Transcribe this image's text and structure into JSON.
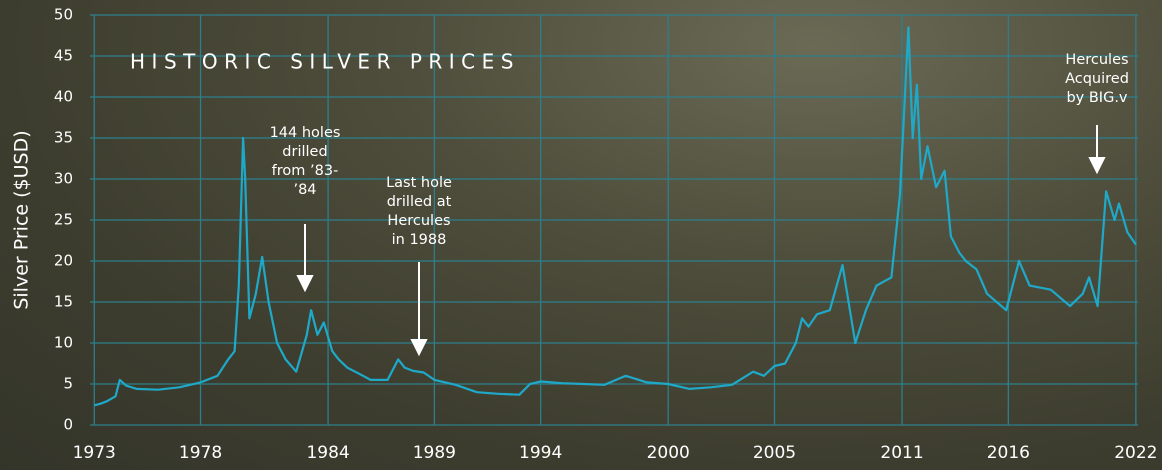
{
  "chart_data": {
    "type": "line",
    "title": "HISTORIC SILVER PRICES",
    "y_label": "Silver Price ($USD)",
    "color": "#1fa9c9",
    "grid": true,
    "x": [
      1973.0,
      1973.3,
      1973.6,
      1974.0,
      1974.2,
      1974.5,
      1975.0,
      1976.0,
      1977.0,
      1978.0,
      1978.8,
      1979.3,
      1979.6,
      1979.8,
      1980.0,
      1980.1,
      1980.3,
      1980.6,
      1980.9,
      1981.2,
      1981.6,
      1982.0,
      1982.5,
      1983.0,
      1983.2,
      1983.5,
      1983.8,
      1984.2,
      1984.5,
      1984.9,
      1985.5,
      1986.0,
      1986.8,
      1987.3,
      1987.6,
      1988.0,
      1988.5,
      1989.0,
      1990.0,
      1991.0,
      1992.0,
      1993.0,
      1993.5,
      1994.0,
      1995.0,
      1996.0,
      1997.0,
      1998.0,
      1999.0,
      2000.0,
      2001.0,
      2002.0,
      2003.0,
      2004.0,
      2004.5,
      2005.0,
      2005.5,
      2006.0,
      2006.3,
      2006.6,
      2007.0,
      2007.6,
      2008.2,
      2008.8,
      2009.3,
      2009.8,
      2010.5,
      2010.9,
      2011.3,
      2011.5,
      2011.7,
      2011.9,
      2012.2,
      2012.6,
      2013.0,
      2013.3,
      2013.7,
      2014.0,
      2014.5,
      2015.0,
      2015.9,
      2016.5,
      2017.0,
      2018.0,
      2018.9,
      2019.5,
      2019.8,
      2020.2,
      2020.6,
      2021.0,
      2021.2,
      2021.6,
      2022.0
    ],
    "values": [
      2.4,
      2.6,
      2.9,
      3.5,
      5.5,
      4.8,
      4.4,
      4.3,
      4.6,
      5.2,
      6.0,
      8,
      9,
      17,
      35,
      30,
      13,
      16,
      20.5,
      15,
      10,
      8,
      6.5,
      11,
      14,
      11,
      12.5,
      9,
      8,
      7,
      6.2,
      5.5,
      5.5,
      8,
      7,
      6.6,
      6.4,
      5.5,
      4.9,
      4.0,
      3.8,
      3.7,
      5,
      5.3,
      5.1,
      5.0,
      4.9,
      6.0,
      5.2,
      5.0,
      4.4,
      4.6,
      4.9,
      6.5,
      6.0,
      7.2,
      7.5,
      10,
      13,
      12,
      13.5,
      14,
      19.5,
      10,
      14,
      17,
      18,
      28,
      48.5,
      35,
      41.5,
      30,
      34,
      29,
      31,
      23,
      21,
      20,
      19,
      16,
      14,
      20,
      17,
      16.5,
      14.5,
      16,
      18,
      14.5,
      28.5,
      25,
      27,
      23.5,
      22
    ],
    "xlim": [
      1972.8,
      2022.1
    ],
    "xticks": [
      1973,
      1978,
      1984,
      1989,
      1994,
      2000,
      2005,
      2011,
      2016,
      2022
    ],
    "ylim": [
      0,
      50
    ],
    "yticks": [
      0,
      5,
      10,
      15,
      20,
      25,
      30,
      35,
      40,
      45,
      50
    ],
    "annotations": [
      {
        "lines": [
          "144 holes",
          "drilled",
          "from ’83-",
          "’84"
        ]
      },
      {
        "lines": [
          "Last hole",
          "drilled at",
          "Hercules",
          "in 1988"
        ]
      },
      {
        "lines": [
          "Hercules",
          "Acquired",
          "by BIG.v"
        ]
      }
    ]
  }
}
